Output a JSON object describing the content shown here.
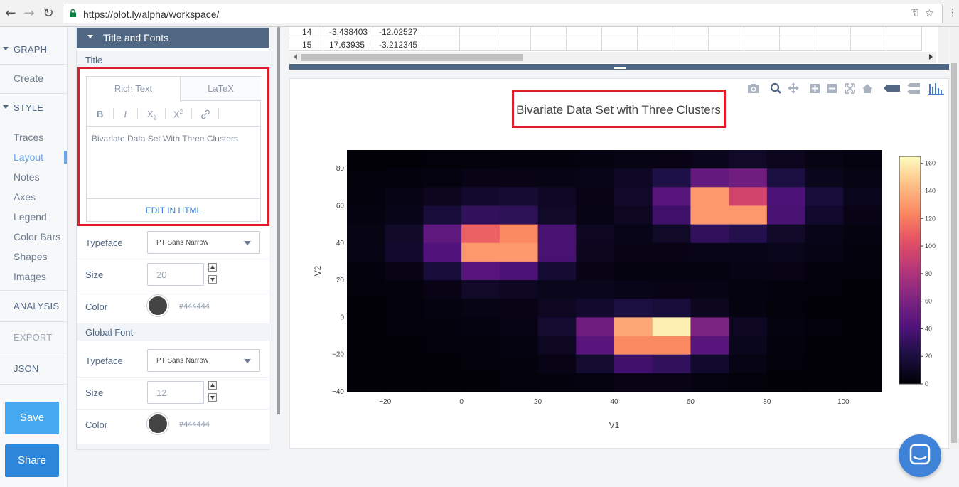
{
  "browser": {
    "url": "https://plot.ly/alpha/workspace/",
    "back_icon": "←",
    "forward_icon": "→",
    "reload_icon": "↻",
    "key_icon": "⚿",
    "star_icon": "☆",
    "menu_icon": "⋮"
  },
  "nav": {
    "graph_label": "GRAPH",
    "create_label": "Create",
    "style_label": "STYLE",
    "style_items": [
      "Traces",
      "Layout",
      "Notes",
      "Axes",
      "Legend",
      "Color Bars",
      "Shapes",
      "Images"
    ],
    "active_item": "Layout",
    "analysis_label": "ANALYSIS",
    "export_label": "EXPORT",
    "json_label": "JSON",
    "save_label": "Save",
    "share_label": "Share",
    "accent_color": "#69a4e6"
  },
  "panel": {
    "header": "Title and Fonts",
    "title_section": "Title",
    "tab_rich": "Rich Text",
    "tab_latex": "LaTeX",
    "toolbar": {
      "bold": "B",
      "italic": "I",
      "sub": "X",
      "sub_mark": "2",
      "sup": "X",
      "sup_mark": "2",
      "link_icon": "link-icon"
    },
    "title_text": "Bivariate Data Set With Three Clusters",
    "edit_html": "EDIT IN HTML",
    "typeface_label": "Typeface",
    "title_typeface": "PT Sans Narrow",
    "size_label": "Size",
    "title_size": "20",
    "color_label": "Color",
    "title_color": "#444444",
    "global_section": "Global Font",
    "global_typeface": "PT Sans Narrow",
    "global_size": "12",
    "global_color": "#444444"
  },
  "grid": {
    "rows": [
      {
        "index": "14",
        "v1": "-3.438403",
        "v2": "-12.02527"
      },
      {
        "index": "15",
        "v1": "17.63935",
        "v2": "-3.212345"
      }
    ]
  },
  "chart_data": {
    "type": "heatmap",
    "title": "Bivariate Data Set with Three Clusters",
    "xlabel": "V1",
    "ylabel": "V2",
    "xlim": [
      -30,
      110
    ],
    "ylim": [
      -40,
      90
    ],
    "x_ticks": [
      -20,
      0,
      20,
      40,
      60,
      80,
      100
    ],
    "y_ticks": [
      -40,
      -20,
      0,
      20,
      40,
      60,
      80
    ],
    "bin_width": 10,
    "bin_height": 10,
    "x_bins_start": -30,
    "y_bins_start": -40,
    "colorscale": "magma",
    "colorbar": {
      "min": 0,
      "max": 165,
      "ticks": [
        0,
        20,
        40,
        60,
        80,
        100,
        120,
        140,
        160
      ]
    },
    "z": [
      [
        1,
        1,
        2,
        2,
        3,
        3,
        4,
        5,
        6,
        8,
        12,
        9,
        5,
        4
      ],
      [
        2,
        3,
        4,
        6,
        6,
        5,
        7,
        11,
        22,
        50,
        55,
        20,
        8,
        5
      ],
      [
        3,
        5,
        9,
        14,
        16,
        11,
        6,
        13,
        45,
        130,
        95,
        40,
        18,
        8
      ],
      [
        4,
        7,
        18,
        30,
        28,
        12,
        5,
        10,
        35,
        130,
        130,
        38,
        14,
        6
      ],
      [
        5,
        12,
        48,
        110,
        125,
        38,
        10,
        7,
        12,
        30,
        25,
        12,
        7,
        4
      ],
      [
        5,
        14,
        42,
        130,
        130,
        38,
        9,
        6,
        6,
        7,
        7,
        8,
        5,
        3
      ],
      [
        3,
        6,
        18,
        45,
        40,
        16,
        6,
        4,
        4,
        4,
        5,
        6,
        3,
        2
      ],
      [
        2,
        3,
        6,
        12,
        10,
        8,
        8,
        7,
        6,
        5,
        4,
        3,
        2,
        1
      ],
      [
        1,
        2,
        4,
        5,
        6,
        10,
        14,
        20,
        18,
        9,
        4,
        2,
        1,
        1
      ],
      [
        1,
        2,
        3,
        4,
        5,
        15,
        55,
        135,
        160,
        60,
        10,
        4,
        2,
        1
      ],
      [
        1,
        1,
        2,
        3,
        4,
        10,
        45,
        125,
        125,
        45,
        8,
        3,
        1,
        1
      ],
      [
        1,
        1,
        1,
        2,
        3,
        6,
        15,
        35,
        30,
        14,
        5,
        2,
        1,
        1
      ],
      [
        1,
        1,
        1,
        1,
        2,
        3,
        4,
        6,
        6,
        4,
        2,
        1,
        1,
        1
      ]
    ]
  }
}
